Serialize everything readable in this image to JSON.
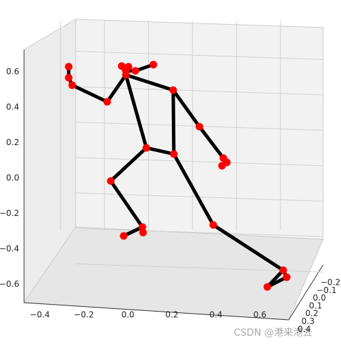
{
  "chart_data": {
    "type": "skeleton3d",
    "x": [
      0.084,
      0.209,
      0.206,
      0.325,
      0.434,
      0.45,
      0.428,
      -0.009,
      -0.028,
      0.003,
      -0.009,
      0.034,
      0.116,
      -0.094,
      -0.253,
      -0.269,
      -0.269,
      -0.078,
      0.066,
      0.069,
      -0.019,
      0.388,
      0.706,
      0.722,
      0.634
    ],
    "values": [
      0.171,
      0.136,
      0.497,
      0.291,
      0.113,
      0.089,
      0.07,
      0.583,
      0.633,
      0.629,
      0.606,
      0.606,
      0.641,
      0.431,
      0.525,
      0.567,
      0.629,
      -0.016,
      -0.276,
      -0.307,
      -0.326,
      -0.264,
      -0.52,
      -0.559,
      -0.614
    ],
    "point_color": "#ff0000",
    "line_color": "#000000",
    "xlim": [
      -0.48,
      0.78
    ],
    "xticks": [
      {
        "value": -0.4,
        "label": "−0.4"
      },
      {
        "value": -0.2,
        "label": "−0.2"
      },
      {
        "value": 0.0,
        "label": "0.0"
      },
      0.2,
      0.4,
      0.6
    ],
    "ylim": [
      -0.72,
      0.72
    ],
    "yticks": [
      {
        "value": -0.6,
        "label": "−0.6"
      },
      {
        "value": -0.4,
        "label": "−0.4"
      },
      {
        "value": -0.2,
        "label": "−0.2"
      },
      {
        "value": 0.0,
        "label": "0.0"
      },
      0.2,
      0.4,
      0.6
    ],
    "zticks": [
      {
        "value": -0.2,
        "label": "−0.2"
      },
      {
        "value": -0.1,
        "label": "−0.1"
      },
      {
        "value": 0.0,
        "label": "0.0"
      },
      0.1,
      0.2,
      0.3,
      0.4
    ],
    "grid": true,
    "watermark": "CSDN @港来港去"
  }
}
